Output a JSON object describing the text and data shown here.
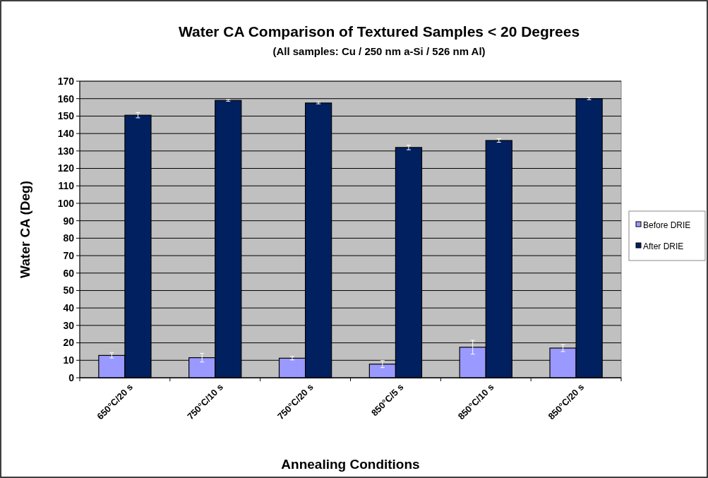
{
  "chart_data": {
    "type": "bar",
    "title": "Water CA Comparison of Textured Samples < 20 Degrees",
    "subtitle": "(All samples: Cu / 250 nm a-Si / 526 nm Al)",
    "xlabel": "Annealing Conditions",
    "ylabel": "Water CA (Deg)",
    "categories": [
      "650°C/20 s",
      "750°C/10 s",
      "750°C/20 s",
      "850°C/5 s",
      "850°C/10 s",
      "850°C/20 s"
    ],
    "series": [
      {
        "name": "Before DRIE",
        "color": "#9999ff",
        "values": [
          12.8,
          11.5,
          11.2,
          7.8,
          17.5,
          17
        ],
        "errors": [
          1.5,
          2.5,
          1,
          2,
          4,
          2
        ]
      },
      {
        "name": "After DRIE",
        "color": "#002060",
        "values": [
          150.5,
          159,
          157.5,
          132,
          136,
          160
        ],
        "errors": [
          1.5,
          0.5,
          0.5,
          1.3,
          1,
          0.6
        ]
      }
    ],
    "ylim": [
      0,
      170
    ],
    "yticks": [
      0,
      10,
      20,
      30,
      40,
      50,
      60,
      70,
      80,
      90,
      100,
      110,
      120,
      130,
      140,
      150,
      160,
      170
    ],
    "grid": "y",
    "legend": "right"
  }
}
